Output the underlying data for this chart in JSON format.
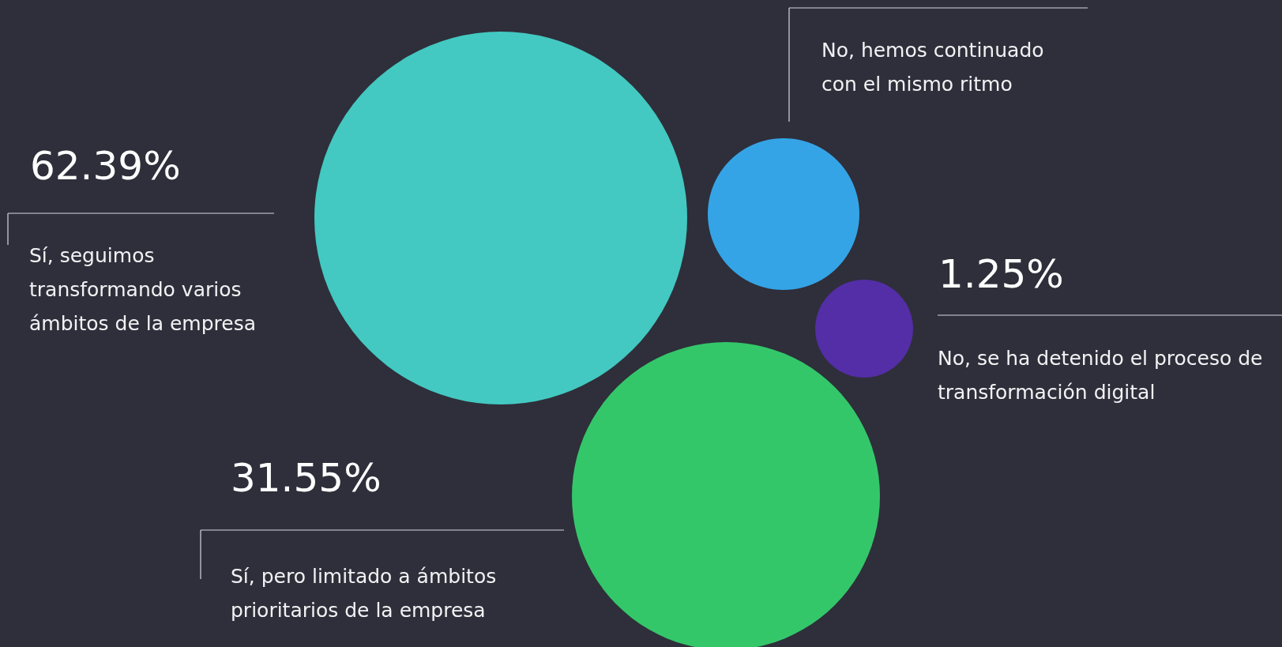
{
  "chart_data": {
    "type": "other",
    "categories": [
      "Sí, seguimos transformando varios ámbitos de la empresa",
      "No, hemos continuado con el mismo ritmo",
      "No, se ha detenido el proceso de transformación digital",
      "Sí, pero limitado a ámbitos prioritarios de la empresa"
    ],
    "values": [
      62.39,
      null,
      1.25,
      31.55
    ],
    "value_labels": [
      "62.39%",
      null,
      "1.25%",
      "31.55%"
    ],
    "colors": [
      "#43c9c1",
      "#35a4e7",
      "#532ea6",
      "#34c76a"
    ]
  }
}
